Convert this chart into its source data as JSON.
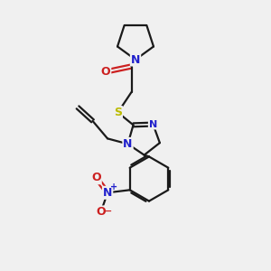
{
  "bg_color": "#f0f0f0",
  "bond_color": "#1a1a1a",
  "N_color": "#2020cc",
  "O_color": "#cc2020",
  "S_color": "#bbbb00",
  "line_width": 1.6,
  "font_size_atom": 9,
  "fig_size": [
    3.0,
    3.0
  ],
  "dpi": 100,
  "xlim": [
    0,
    10
  ],
  "ylim": [
    0,
    10
  ]
}
